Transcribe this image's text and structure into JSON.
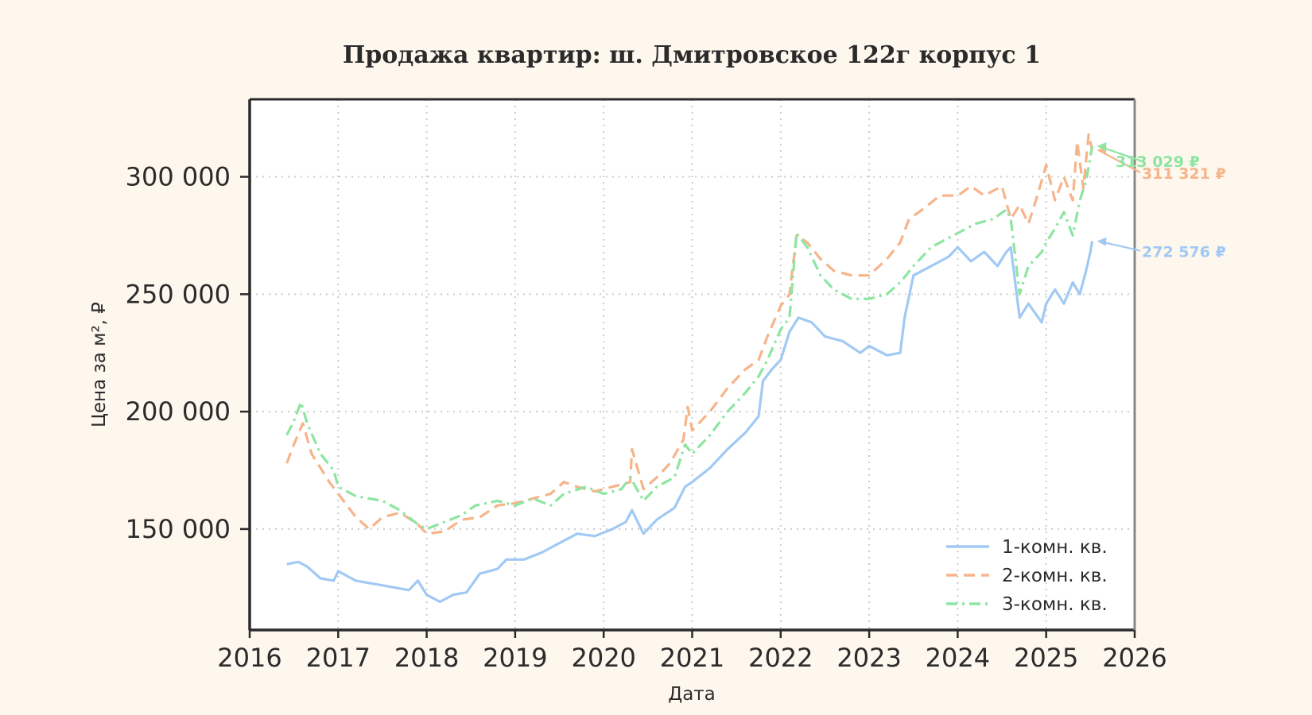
{
  "chart_data": {
    "type": "line",
    "title": "Продажа квартир: ш. Дмитровское 122г корпус 1",
    "xlabel": "Дата",
    "ylabel": "Цена за м², ₽",
    "xlim": [
      2016.0,
      2026.0
    ],
    "ylim": [
      107000,
      333000
    ],
    "x_ticks": [
      "2016",
      "2017",
      "2018",
      "2019",
      "2020",
      "2021",
      "2022",
      "2023",
      "2024",
      "2025",
      "2026"
    ],
    "y_ticks": [
      "150 000",
      "200 000",
      "250 000",
      "300 000"
    ],
    "y_tick_values": [
      150000,
      200000,
      250000,
      300000
    ],
    "grid": true,
    "legend_position": "bottom-right",
    "series": [
      {
        "name": "1-комн. кв.",
        "color": "#a1c9f4",
        "dash": "solid",
        "end_label": "272 576 ₽",
        "x": [
          2016.42,
          2016.55,
          2016.65,
          2016.8,
          2016.95,
          2017.0,
          2017.2,
          2017.5,
          2017.8,
          2017.9,
          2018.0,
          2018.15,
          2018.3,
          2018.45,
          2018.6,
          2018.8,
          2018.9,
          2019.1,
          2019.3,
          2019.5,
          2019.7,
          2019.9,
          2020.1,
          2020.25,
          2020.32,
          2020.45,
          2020.6,
          2020.8,
          2020.92,
          2021.0,
          2021.2,
          2021.4,
          2021.6,
          2021.75,
          2021.8,
          2021.9,
          2022.0,
          2022.1,
          2022.2,
          2022.35,
          2022.5,
          2022.7,
          2022.9,
          2023.0,
          2023.2,
          2023.35,
          2023.4,
          2023.5,
          2023.7,
          2023.9,
          2024.0,
          2024.15,
          2024.3,
          2024.45,
          2024.55,
          2024.6,
          2024.7,
          2024.8,
          2024.95,
          2025.0,
          2025.1,
          2025.2,
          2025.3,
          2025.38,
          2025.45,
          2025.5,
          2025.52
        ],
        "values": [
          135000,
          136000,
          134000,
          129000,
          128000,
          132000,
          128000,
          126000,
          124000,
          128000,
          122000,
          119000,
          122000,
          123000,
          131000,
          133000,
          137000,
          137000,
          140000,
          144000,
          148000,
          147000,
          150000,
          153000,
          158000,
          148000,
          154000,
          159000,
          168000,
          170000,
          176000,
          184000,
          191000,
          198000,
          213000,
          218000,
          222000,
          234000,
          240000,
          238000,
          232000,
          230000,
          225000,
          228000,
          224000,
          225000,
          240000,
          258000,
          262000,
          266000,
          270000,
          264000,
          268000,
          262000,
          268000,
          270000,
          240000,
          246000,
          238000,
          246000,
          252000,
          246000,
          255000,
          250000,
          260000,
          268000,
          272576
        ]
      },
      {
        "name": "2-комн. кв.",
        "color": "#f6b48a",
        "dash": "dashed",
        "end_label": "311 321 ₽",
        "x": [
          2016.42,
          2016.5,
          2016.6,
          2016.7,
          2016.9,
          2017.0,
          2017.2,
          2017.35,
          2017.5,
          2017.7,
          2017.9,
          2018.0,
          2018.2,
          2018.4,
          2018.6,
          2018.8,
          2019.0,
          2019.2,
          2019.4,
          2019.55,
          2019.7,
          2019.9,
          2020.1,
          2020.3,
          2020.32,
          2020.45,
          2020.6,
          2020.75,
          2020.9,
          2020.95,
          2021.0,
          2021.2,
          2021.4,
          2021.6,
          2021.75,
          2021.85,
          2022.0,
          2022.1,
          2022.18,
          2022.3,
          2022.45,
          2022.6,
          2022.8,
          2023.0,
          2023.2,
          2023.35,
          2023.45,
          2023.6,
          2023.8,
          2024.0,
          2024.15,
          2024.3,
          2024.5,
          2024.6,
          2024.7,
          2024.8,
          2024.9,
          2025.0,
          2025.1,
          2025.2,
          2025.3,
          2025.35,
          2025.42,
          2025.48,
          2025.52
        ],
        "values": [
          178000,
          186000,
          195000,
          182000,
          170000,
          165000,
          155000,
          150000,
          155000,
          157000,
          152000,
          148000,
          149000,
          154000,
          155000,
          160000,
          161000,
          163000,
          165000,
          170000,
          168000,
          166000,
          168000,
          170000,
          184000,
          167000,
          172000,
          178000,
          188000,
          202000,
          192000,
          200000,
          210000,
          218000,
          222000,
          232000,
          245000,
          250000,
          275000,
          272000,
          265000,
          260000,
          258000,
          258000,
          265000,
          272000,
          282000,
          286000,
          292000,
          292000,
          296000,
          292000,
          296000,
          282000,
          288000,
          280000,
          292000,
          305000,
          290000,
          300000,
          290000,
          315000,
          295000,
          318000,
          311321
        ]
      },
      {
        "name": "3-комн. кв.",
        "color": "#8de5a1",
        "dash": "dashdot",
        "end_label": "313 029 ₽",
        "x": [
          2016.42,
          2016.5,
          2016.58,
          2016.65,
          2016.8,
          2016.95,
          2017.0,
          2017.2,
          2017.5,
          2017.7,
          2017.9,
          2018.0,
          2018.2,
          2018.4,
          2018.55,
          2018.8,
          2019.0,
          2019.2,
          2019.4,
          2019.55,
          2019.8,
          2020.0,
          2020.2,
          2020.3,
          2020.45,
          2020.6,
          2020.8,
          2020.92,
          2021.0,
          2021.2,
          2021.4,
          2021.6,
          2021.75,
          2021.85,
          2022.0,
          2022.1,
          2022.18,
          2022.3,
          2022.45,
          2022.6,
          2022.8,
          2023.0,
          2023.2,
          2023.35,
          2023.5,
          2023.7,
          2023.9,
          2024.0,
          2024.2,
          2024.4,
          2024.55,
          2024.6,
          2024.7,
          2024.8,
          2024.95,
          2025.0,
          2025.1,
          2025.2,
          2025.3,
          2025.38,
          2025.45,
          2025.52
        ],
        "values": [
          190000,
          196000,
          204000,
          195000,
          182000,
          175000,
          168000,
          164000,
          162000,
          158000,
          152000,
          150000,
          153000,
          156000,
          160000,
          162000,
          160000,
          163000,
          160000,
          165000,
          168000,
          165000,
          167000,
          172000,
          162000,
          168000,
          172000,
          186000,
          182000,
          190000,
          200000,
          208000,
          215000,
          222000,
          235000,
          240000,
          276000,
          270000,
          258000,
          252000,
          248000,
          248000,
          250000,
          255000,
          262000,
          270000,
          274000,
          276000,
          280000,
          282000,
          286000,
          282000,
          250000,
          262000,
          268000,
          272000,
          278000,
          285000,
          275000,
          290000,
          298000,
          313029
        ]
      }
    ]
  }
}
